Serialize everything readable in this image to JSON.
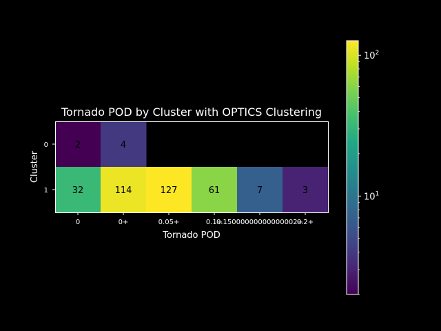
{
  "chart_data": {
    "type": "heatmap",
    "title": "Tornado POD by Cluster with OPTICS Clustering",
    "xlabel": "Tornado POD",
    "ylabel": "Cluster",
    "x_categories": [
      "0",
      "0+",
      "0.05+",
      "0.1+",
      "0.15000000000000002+",
      "0.2+"
    ],
    "y_categories": [
      "0",
      "1"
    ],
    "values": [
      [
        2,
        4,
        null,
        null,
        null,
        null
      ],
      [
        32,
        114,
        127,
        61,
        7,
        3
      ]
    ],
    "value_labels": [
      [
        "2",
        "4",
        "",
        "",
        "",
        ""
      ],
      [
        "32",
        "114",
        "127",
        "61",
        "7",
        "3"
      ]
    ],
    "colorbar": {
      "scale": "log",
      "range": [
        2,
        127
      ],
      "ticks": [
        {
          "value": 10,
          "base": "10",
          "exp": "1"
        },
        {
          "value": 100,
          "base": "10",
          "exp": "2"
        }
      ],
      "colormap": "viridis"
    },
    "grid": false,
    "background": "#000000"
  }
}
